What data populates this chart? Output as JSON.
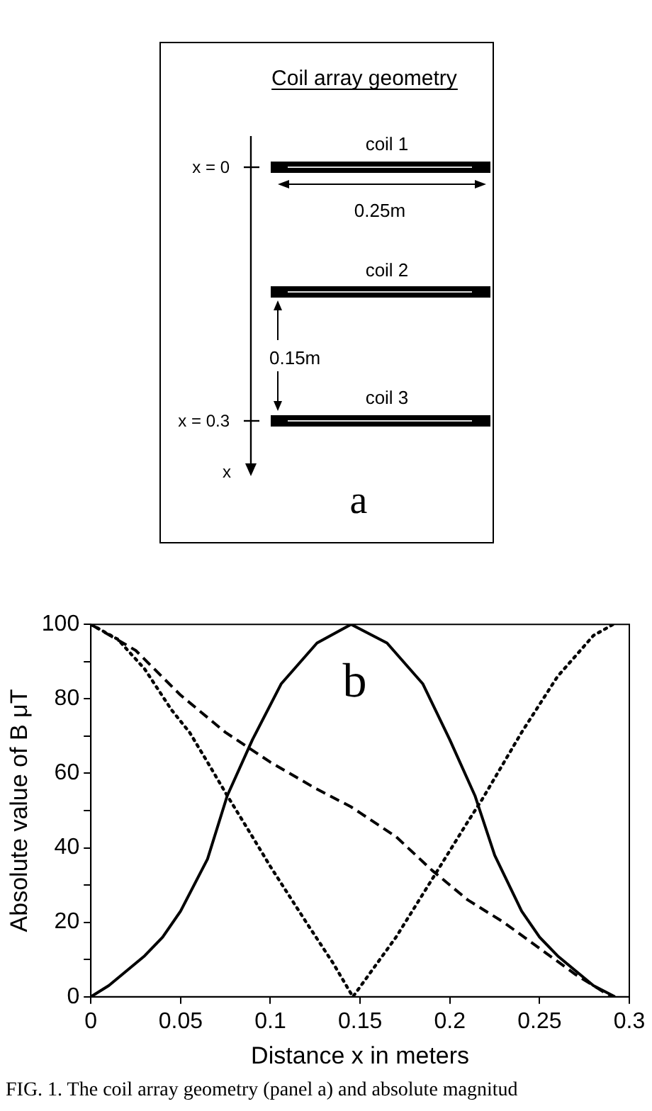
{
  "chart_data": [
    {
      "type": "other",
      "title": "Coil array geometry",
      "annotations": [
        "coil 1",
        "0.25m",
        "coil 2",
        "0.15m",
        "coil 3",
        "x = 0",
        "x = 0.3",
        "x",
        "a"
      ]
    },
    {
      "type": "line",
      "xlabel": "Distance x in meters",
      "ylabel": "Absolute value of B μT",
      "xlim": [
        0,
        0.3
      ],
      "ylim": [
        0,
        100
      ],
      "xticks": [
        0,
        0.05,
        0.1,
        0.15,
        0.2,
        0.25,
        0.3
      ],
      "yticks": [
        0,
        {
          "value": 10,
          "label": null
        },
        20,
        {
          "value": 30,
          "label": null
        },
        40,
        {
          "value": 50,
          "label": null
        },
        60,
        {
          "value": 70,
          "label": null
        },
        80,
        {
          "value": 90,
          "label": null
        },
        100
      ],
      "grid": false,
      "legend": false,
      "series": [
        {
          "color": "#000000",
          "line_style": "solid",
          "x": [
            0,
            0.01,
            0.02,
            0.03,
            0.04,
            0.05,
            0.065,
            0.076,
            0.09,
            0.106,
            0.126,
            0.145,
            0.165,
            0.185,
            0.2,
            0.214,
            0.225,
            0.24,
            0.25,
            0.26,
            0.27,
            0.28,
            0.292
          ],
          "values": [
            0,
            3,
            7,
            11,
            16,
            23,
            37,
            54,
            69,
            84,
            95,
            100,
            95,
            84,
            69,
            54,
            38,
            23,
            16,
            11,
            7,
            3,
            0
          ]
        },
        {
          "color": "#000000",
          "line_style": "dashed",
          "x": [
            0,
            0.025,
            0.05,
            0.075,
            0.1,
            0.125,
            0.145,
            0.17,
            0.19,
            0.21,
            0.23,
            0.25,
            0.27,
            0.29
          ],
          "values": [
            100,
            93,
            81,
            71,
            63,
            56,
            51,
            43,
            34,
            26,
            20,
            13,
            6,
            0
          ]
        },
        {
          "color": "#000000",
          "line_style": "dotted",
          "x": [
            0,
            0.015,
            0.03,
            0.045,
            0.055,
            0.065,
            0.076,
            0.09,
            0.1,
            0.12,
            0.135,
            0.146,
            0.17,
            0.192,
            0.21,
            0.218,
            0.24,
            0.26,
            0.28,
            0.291
          ],
          "values": [
            100,
            96,
            88,
            77,
            71,
            63,
            54,
            43,
            35,
            20,
            9,
            0,
            16,
            33,
            47,
            53,
            71,
            86,
            97,
            100
          ]
        }
      ],
      "annotations": [
        "b",
        "FIG. 1. The coil array geometry (panel a) and absolute magnitud"
      ]
    }
  ]
}
